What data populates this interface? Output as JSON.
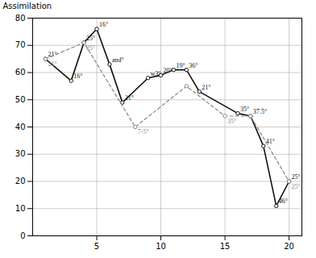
{
  "chart_data": {
    "type": "line",
    "ylabel": "Assimilation",
    "xlim": [
      0,
      21
    ],
    "ylim": [
      0,
      80
    ],
    "xticks": [
      5,
      10,
      15,
      20
    ],
    "yticks": [
      0,
      10,
      20,
      30,
      40,
      50,
      60,
      70,
      80
    ],
    "grid": true,
    "series": [
      {
        "x": [
          1,
          3,
          4,
          5,
          6,
          7,
          9,
          10,
          11,
          12,
          13,
          16,
          17,
          18,
          19,
          20
        ],
        "values": [
          65,
          57,
          71,
          76,
          63,
          49,
          58,
          59,
          61,
          61,
          53,
          45,
          44,
          33,
          11,
          20
        ],
        "labels": [
          "21°",
          "16°",
          "25°",
          "16°",
          "and°",
          "21°",
          "w3°",
          "20°",
          "19°",
          "36°",
          "21°",
          "35°",
          "37.5°",
          "41°",
          "46°",
          "25°"
        ],
        "color": "#111111",
        "line_style": "solid",
        "marker": "circle"
      },
      {
        "x": [
          1,
          4,
          8,
          12,
          15,
          17,
          20
        ],
        "values": [
          65,
          71,
          40,
          55,
          44,
          44,
          20
        ],
        "labels": [
          "21°",
          "25°",
          "7-5°",
          null,
          "35°",
          null,
          "25°"
        ],
        "color": "#888888",
        "line_style": "dashed",
        "marker": "circle"
      }
    ]
  }
}
